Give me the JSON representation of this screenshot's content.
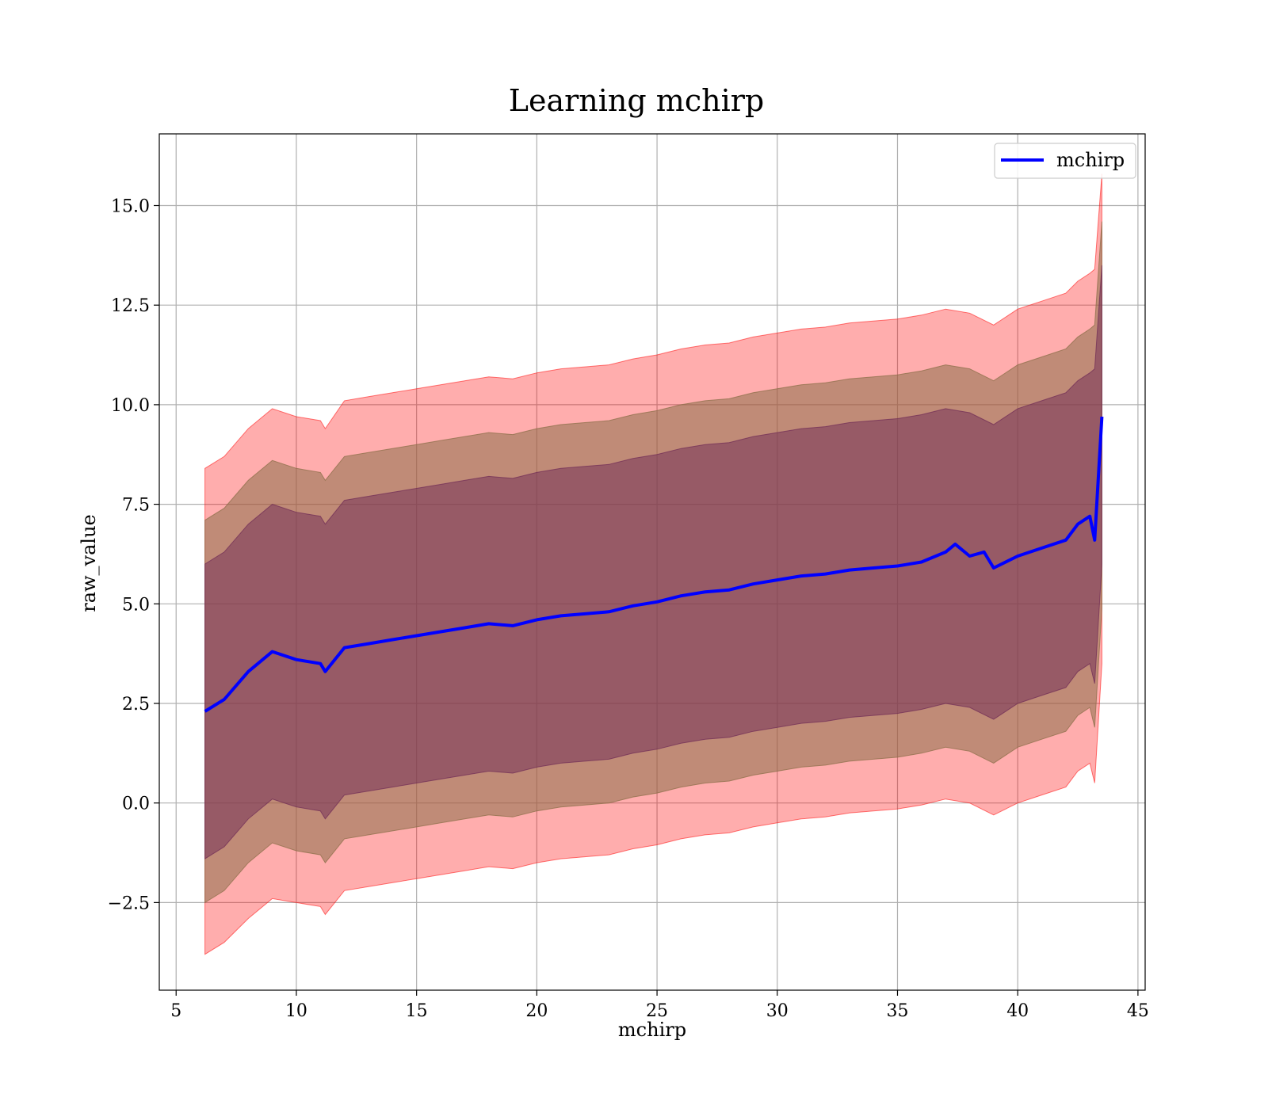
{
  "chart_data": {
    "type": "area",
    "title": "Learning mchirp",
    "xlabel": "mchirp",
    "ylabel": "raw_value",
    "xlim": [
      4.3,
      45.3
    ],
    "ylim": [
      -4.7,
      16.8
    ],
    "x_ticks": [
      5,
      10,
      15,
      20,
      25,
      30,
      35,
      40,
      45
    ],
    "x_tick_labels": [
      "5",
      "10",
      "15",
      "20",
      "25",
      "30",
      "35",
      "40",
      "45"
    ],
    "y_ticks": [
      -2.5,
      0.0,
      2.5,
      5.0,
      7.5,
      10.0,
      12.5,
      15.0
    ],
    "y_tick_labels": [
      "−2.5",
      "0.0",
      "2.5",
      "5.0",
      "7.5",
      "10.0",
      "12.5",
      "15.0"
    ],
    "grid": true,
    "legend": {
      "position": "top-right",
      "entries": [
        "mchirp"
      ]
    },
    "series": [
      {
        "name": "mchirp",
        "kind": "line",
        "color": "#0000ff",
        "x": [
          6.2,
          7,
          8,
          9,
          10,
          11,
          11.2,
          12,
          13,
          14,
          15,
          16,
          17,
          18,
          19,
          20,
          21,
          22,
          23,
          24,
          25,
          26,
          27,
          28,
          29,
          30,
          31,
          32,
          33,
          34,
          35,
          36,
          37,
          37.4,
          38,
          38.6,
          39,
          40,
          41,
          42,
          42.5,
          43,
          43.2,
          43.5
        ],
        "y": [
          2.3,
          2.6,
          3.3,
          3.8,
          3.6,
          3.5,
          3.3,
          3.9,
          4.0,
          4.1,
          4.2,
          4.3,
          4.4,
          4.5,
          4.45,
          4.6,
          4.7,
          4.75,
          4.8,
          4.95,
          5.05,
          5.2,
          5.3,
          5.35,
          5.5,
          5.6,
          5.7,
          5.75,
          5.85,
          5.9,
          5.95,
          6.05,
          6.3,
          6.5,
          6.2,
          6.3,
          5.9,
          6.2,
          6.4,
          6.6,
          7.0,
          7.2,
          6.6,
          9.7
        ]
      },
      {
        "kind": "band",
        "color": "#ff0000",
        "opacity": 0.32,
        "x": [
          6.2,
          7,
          8,
          9,
          10,
          11,
          11.2,
          12,
          13,
          14,
          15,
          16,
          17,
          18,
          19,
          20,
          21,
          22,
          23,
          24,
          25,
          26,
          27,
          28,
          29,
          30,
          31,
          32,
          33,
          34,
          35,
          36,
          37,
          38,
          39,
          40,
          41,
          42,
          42.5,
          43,
          43.2,
          43.5
        ],
        "upper": [
          8.4,
          8.7,
          9.4,
          9.9,
          9.7,
          9.6,
          9.4,
          10.1,
          10.2,
          10.3,
          10.4,
          10.5,
          10.6,
          10.7,
          10.65,
          10.8,
          10.9,
          10.95,
          11.0,
          11.15,
          11.25,
          11.4,
          11.5,
          11.55,
          11.7,
          11.8,
          11.9,
          11.95,
          12.05,
          12.1,
          12.15,
          12.25,
          12.4,
          12.3,
          12.0,
          12.4,
          12.6,
          12.8,
          13.1,
          13.3,
          13.4,
          15.8
        ],
        "lower": [
          -3.8,
          -3.5,
          -2.9,
          -2.4,
          -2.5,
          -2.6,
          -2.8,
          -2.2,
          -2.1,
          -2.0,
          -1.9,
          -1.8,
          -1.7,
          -1.6,
          -1.65,
          -1.5,
          -1.4,
          -1.35,
          -1.3,
          -1.15,
          -1.05,
          -0.9,
          -0.8,
          -0.75,
          -0.6,
          -0.5,
          -0.4,
          -0.35,
          -0.25,
          -0.2,
          -0.15,
          -0.05,
          0.1,
          0.0,
          -0.3,
          0.0,
          0.2,
          0.4,
          0.8,
          1.0,
          0.5,
          3.5
        ]
      },
      {
        "kind": "band",
        "color": "#8c6f4a",
        "opacity": 0.55,
        "x": [
          6.2,
          7,
          8,
          9,
          10,
          11,
          11.2,
          12,
          13,
          14,
          15,
          16,
          17,
          18,
          19,
          20,
          21,
          22,
          23,
          24,
          25,
          26,
          27,
          28,
          29,
          30,
          31,
          32,
          33,
          34,
          35,
          36,
          37,
          38,
          39,
          40,
          41,
          42,
          42.5,
          43,
          43.2,
          43.5
        ],
        "upper": [
          7.1,
          7.4,
          8.1,
          8.6,
          8.4,
          8.3,
          8.1,
          8.7,
          8.8,
          8.9,
          9.0,
          9.1,
          9.2,
          9.3,
          9.25,
          9.4,
          9.5,
          9.55,
          9.6,
          9.75,
          9.85,
          10.0,
          10.1,
          10.15,
          10.3,
          10.4,
          10.5,
          10.55,
          10.65,
          10.7,
          10.75,
          10.85,
          11.0,
          10.9,
          10.6,
          11.0,
          11.2,
          11.4,
          11.7,
          11.9,
          12.0,
          14.6
        ],
        "lower": [
          -2.5,
          -2.2,
          -1.5,
          -1.0,
          -1.2,
          -1.3,
          -1.5,
          -0.9,
          -0.8,
          -0.7,
          -0.6,
          -0.5,
          -0.4,
          -0.3,
          -0.35,
          -0.2,
          -0.1,
          -0.05,
          0.0,
          0.15,
          0.25,
          0.4,
          0.5,
          0.55,
          0.7,
          0.8,
          0.9,
          0.95,
          1.05,
          1.1,
          1.15,
          1.25,
          1.4,
          1.3,
          1.0,
          1.4,
          1.6,
          1.8,
          2.2,
          2.4,
          1.9,
          4.9
        ]
      },
      {
        "kind": "band",
        "color": "#6e2a55",
        "opacity": 0.5,
        "x": [
          6.2,
          7,
          8,
          9,
          10,
          11,
          11.2,
          12,
          13,
          14,
          15,
          16,
          17,
          18,
          19,
          20,
          21,
          22,
          23,
          24,
          25,
          26,
          27,
          28,
          29,
          30,
          31,
          32,
          33,
          34,
          35,
          36,
          37,
          38,
          39,
          40,
          41,
          42,
          42.5,
          43,
          43.2,
          43.5
        ],
        "upper": [
          6.0,
          6.3,
          7.0,
          7.5,
          7.3,
          7.2,
          7.0,
          7.6,
          7.7,
          7.8,
          7.9,
          8.0,
          8.1,
          8.2,
          8.15,
          8.3,
          8.4,
          8.45,
          8.5,
          8.65,
          8.75,
          8.9,
          9.0,
          9.05,
          9.2,
          9.3,
          9.4,
          9.45,
          9.55,
          9.6,
          9.65,
          9.75,
          9.9,
          9.8,
          9.5,
          9.9,
          10.1,
          10.3,
          10.6,
          10.8,
          10.9,
          13.5
        ],
        "lower": [
          -1.4,
          -1.1,
          -0.4,
          0.1,
          -0.1,
          -0.2,
          -0.4,
          0.2,
          0.3,
          0.4,
          0.5,
          0.6,
          0.7,
          0.8,
          0.75,
          0.9,
          1.0,
          1.05,
          1.1,
          1.25,
          1.35,
          1.5,
          1.6,
          1.65,
          1.8,
          1.9,
          2.0,
          2.05,
          2.15,
          2.2,
          2.25,
          2.35,
          2.5,
          2.4,
          2.1,
          2.5,
          2.7,
          2.9,
          3.3,
          3.5,
          3.0,
          6.0
        ]
      }
    ]
  }
}
